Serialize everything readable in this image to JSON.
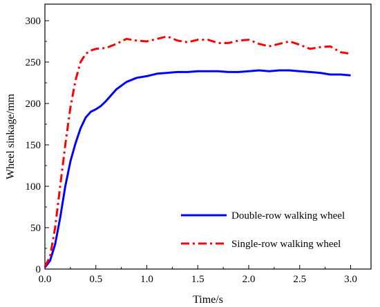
{
  "chart_data": {
    "type": "line",
    "title": "",
    "xlabel": "Time/s",
    "ylabel": "Wheel sinkage/mm",
    "xlim": [
      0,
      3.2
    ],
    "ylim": [
      0,
      320
    ],
    "x_ticks": [
      0.0,
      0.5,
      1.0,
      1.5,
      2.0,
      2.5,
      3.0
    ],
    "x_tick_labels": [
      "0.0",
      "0.5",
      "1.0",
      "1.5",
      "2.0",
      "2.5",
      "3.0"
    ],
    "y_ticks": [
      0,
      50,
      100,
      150,
      200,
      250,
      300
    ],
    "y_tick_labels": [
      "0",
      "50",
      "100",
      "150",
      "200",
      "250",
      "300"
    ],
    "grid": false,
    "legend_position": "bottom-right",
    "series": [
      {
        "name": "Double-row walking wheel",
        "color": "#0000ff",
        "style": "solid",
        "x": [
          0.0,
          0.05,
          0.1,
          0.15,
          0.2,
          0.25,
          0.3,
          0.35,
          0.4,
          0.45,
          0.5,
          0.55,
          0.6,
          0.7,
          0.8,
          0.9,
          1.0,
          1.1,
          1.2,
          1.3,
          1.4,
          1.5,
          1.6,
          1.7,
          1.8,
          1.9,
          2.0,
          2.1,
          2.2,
          2.3,
          2.4,
          2.5,
          2.6,
          2.7,
          2.8,
          2.9,
          3.0
        ],
        "y": [
          2,
          10,
          30,
          62,
          100,
          130,
          152,
          170,
          183,
          190,
          193,
          197,
          203,
          217,
          226,
          231,
          233,
          236,
          237,
          238,
          238,
          239,
          239,
          239,
          238,
          238,
          239,
          240,
          239,
          240,
          240,
          239,
          238,
          237,
          235,
          235,
          234
        ]
      },
      {
        "name": "Single-row walking wheel",
        "color": "#ff0000",
        "style": "dash-dot",
        "x": [
          0.0,
          0.05,
          0.1,
          0.15,
          0.2,
          0.25,
          0.3,
          0.35,
          0.4,
          0.45,
          0.5,
          0.6,
          0.7,
          0.8,
          0.9,
          1.0,
          1.1,
          1.2,
          1.3,
          1.4,
          1.5,
          1.6,
          1.7,
          1.8,
          1.9,
          2.0,
          2.1,
          2.2,
          2.3,
          2.4,
          2.5,
          2.6,
          2.7,
          2.8,
          2.9,
          3.0
        ],
        "y": [
          3,
          15,
          50,
          100,
          150,
          195,
          228,
          250,
          260,
          264,
          266,
          267,
          272,
          278,
          276,
          275,
          278,
          281,
          276,
          274,
          277,
          277,
          273,
          273,
          276,
          277,
          272,
          269,
          272,
          275,
          271,
          266,
          268,
          269,
          262,
          260
        ]
      }
    ]
  }
}
